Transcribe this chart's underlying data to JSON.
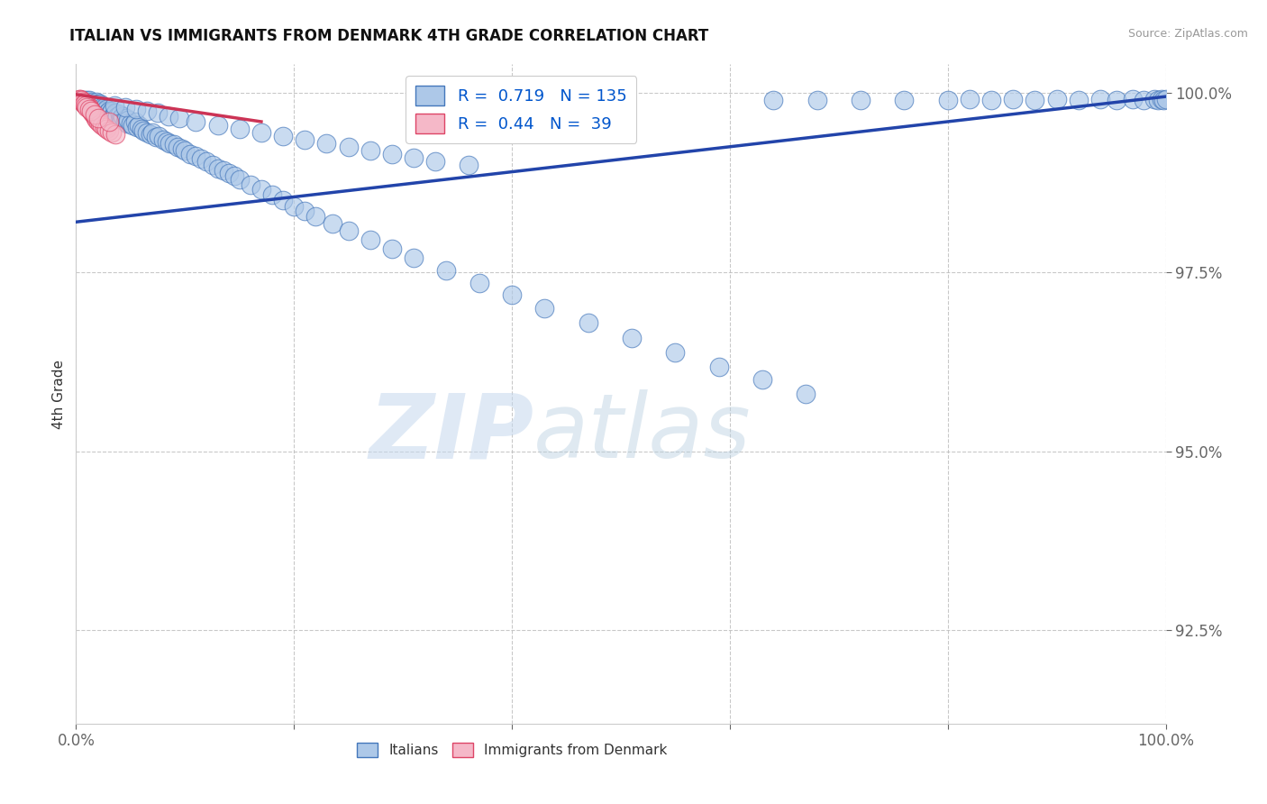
{
  "title": "ITALIAN VS IMMIGRANTS FROM DENMARK 4TH GRADE CORRELATION CHART",
  "source_text": "Source: ZipAtlas.com",
  "ylabel": "4th Grade",
  "xlim": [
    0.0,
    1.0
  ],
  "ylim": [
    0.912,
    1.004
  ],
  "ytick_labels": [
    "92.5%",
    "95.0%",
    "97.5%",
    "100.0%"
  ],
  "ytick_values": [
    0.925,
    0.95,
    0.975,
    1.0
  ],
  "xtick_positions": [
    0.0,
    0.2,
    0.4,
    0.6,
    0.8,
    1.0
  ],
  "xtick_labels": [
    "0.0%",
    "",
    "",
    "",
    "",
    "100.0%"
  ],
  "blue_R": 0.719,
  "blue_N": 135,
  "pink_R": 0.44,
  "pink_N": 39,
  "blue_color": "#adc8e8",
  "blue_edge_color": "#4477bb",
  "pink_color": "#f5b8c8",
  "pink_edge_color": "#dd4466",
  "blue_line_color": "#2244aa",
  "pink_line_color": "#cc3355",
  "legend_R_color": "#0055cc",
  "watermark_zip": "ZIP",
  "watermark_atlas": "atlas",
  "background_color": "#ffffff",
  "blue_scatter_x": [
    0.005,
    0.007,
    0.008,
    0.01,
    0.012,
    0.012,
    0.013,
    0.015,
    0.015,
    0.016,
    0.017,
    0.018,
    0.018,
    0.019,
    0.02,
    0.02,
    0.021,
    0.022,
    0.022,
    0.023,
    0.024,
    0.024,
    0.025,
    0.026,
    0.027,
    0.028,
    0.029,
    0.03,
    0.031,
    0.032,
    0.033,
    0.034,
    0.035,
    0.036,
    0.037,
    0.038,
    0.04,
    0.041,
    0.042,
    0.043,
    0.045,
    0.046,
    0.047,
    0.048,
    0.05,
    0.052,
    0.054,
    0.056,
    0.058,
    0.06,
    0.062,
    0.065,
    0.068,
    0.07,
    0.073,
    0.076,
    0.08,
    0.083,
    0.086,
    0.09,
    0.093,
    0.097,
    0.1,
    0.105,
    0.11,
    0.115,
    0.12,
    0.125,
    0.13,
    0.135,
    0.14,
    0.145,
    0.15,
    0.16,
    0.17,
    0.18,
    0.19,
    0.2,
    0.21,
    0.22,
    0.235,
    0.25,
    0.27,
    0.29,
    0.31,
    0.34,
    0.37,
    0.4,
    0.43,
    0.47,
    0.51,
    0.55,
    0.59,
    0.63,
    0.67,
    0.64,
    0.68,
    0.72,
    0.76,
    0.8,
    0.82,
    0.84,
    0.86,
    0.88,
    0.9,
    0.92,
    0.94,
    0.955,
    0.97,
    0.98,
    0.99,
    0.993,
    0.996,
    0.998,
    1.0,
    0.035,
    0.045,
    0.055,
    0.065,
    0.075,
    0.085,
    0.095,
    0.11,
    0.13,
    0.15,
    0.17,
    0.19,
    0.21,
    0.23,
    0.25,
    0.27,
    0.29,
    0.31,
    0.33,
    0.36
  ],
  "blue_scatter_y": [
    0.999,
    0.999,
    0.9985,
    0.999,
    0.999,
    0.9985,
    0.9985,
    0.9988,
    0.9982,
    0.9985,
    0.9985,
    0.9982,
    0.998,
    0.9988,
    0.9985,
    0.998,
    0.9982,
    0.9985,
    0.9978,
    0.9982,
    0.998,
    0.9975,
    0.9978,
    0.998,
    0.9975,
    0.9978,
    0.9972,
    0.9975,
    0.997,
    0.9972,
    0.9975,
    0.9968,
    0.997,
    0.9972,
    0.9965,
    0.9968,
    0.997,
    0.9965,
    0.9962,
    0.9968,
    0.996,
    0.9965,
    0.9958,
    0.9962,
    0.9958,
    0.9955,
    0.996,
    0.9952,
    0.9955,
    0.995,
    0.9948,
    0.9945,
    0.9942,
    0.9945,
    0.9938,
    0.994,
    0.9935,
    0.9932,
    0.993,
    0.9928,
    0.9925,
    0.9922,
    0.992,
    0.9915,
    0.9912,
    0.9908,
    0.9905,
    0.99,
    0.9895,
    0.9892,
    0.9888,
    0.9885,
    0.988,
    0.9872,
    0.9865,
    0.9858,
    0.985,
    0.9842,
    0.9835,
    0.9828,
    0.9818,
    0.9808,
    0.9795,
    0.9782,
    0.977,
    0.9752,
    0.9735,
    0.9718,
    0.97,
    0.968,
    0.9658,
    0.9638,
    0.9618,
    0.96,
    0.958,
    0.999,
    0.999,
    0.999,
    0.999,
    0.999,
    0.9992,
    0.999,
    0.9992,
    0.999,
    0.9992,
    0.999,
    0.9992,
    0.999,
    0.9992,
    0.999,
    0.9992,
    0.999,
    0.9992,
    0.999,
    0.9992,
    0.9982,
    0.998,
    0.9978,
    0.9975,
    0.9972,
    0.9968,
    0.9965,
    0.996,
    0.9955,
    0.995,
    0.9945,
    0.994,
    0.9935,
    0.993,
    0.9925,
    0.992,
    0.9915,
    0.991,
    0.9905,
    0.99
  ],
  "pink_scatter_x": [
    0.003,
    0.004,
    0.005,
    0.006,
    0.007,
    0.007,
    0.008,
    0.009,
    0.01,
    0.01,
    0.011,
    0.012,
    0.013,
    0.014,
    0.015,
    0.016,
    0.017,
    0.018,
    0.019,
    0.02,
    0.022,
    0.024,
    0.026,
    0.028,
    0.03,
    0.033,
    0.036,
    0.004,
    0.005,
    0.006,
    0.007,
    0.008,
    0.009,
    0.01,
    0.012,
    0.014,
    0.017,
    0.02,
    0.03
  ],
  "pink_scatter_y": [
    0.9992,
    0.999,
    0.999,
    0.9988,
    0.9988,
    0.9985,
    0.9985,
    0.9985,
    0.9982,
    0.9985,
    0.998,
    0.998,
    0.9978,
    0.9975,
    0.9972,
    0.997,
    0.9968,
    0.9965,
    0.9962,
    0.996,
    0.9958,
    0.9955,
    0.9952,
    0.995,
    0.9948,
    0.9945,
    0.9942,
    0.9992,
    0.999,
    0.9988,
    0.9985,
    0.9985,
    0.9982,
    0.998,
    0.9978,
    0.9975,
    0.997,
    0.9965,
    0.996
  ],
  "blue_line_start_x": 0.0,
  "blue_line_end_x": 1.0,
  "blue_line_start_y": 0.982,
  "blue_line_end_y": 0.9995,
  "pink_line_start_x": 0.0,
  "pink_line_end_x": 0.17,
  "pink_line_start_y": 0.9998,
  "pink_line_end_y": 0.996
}
